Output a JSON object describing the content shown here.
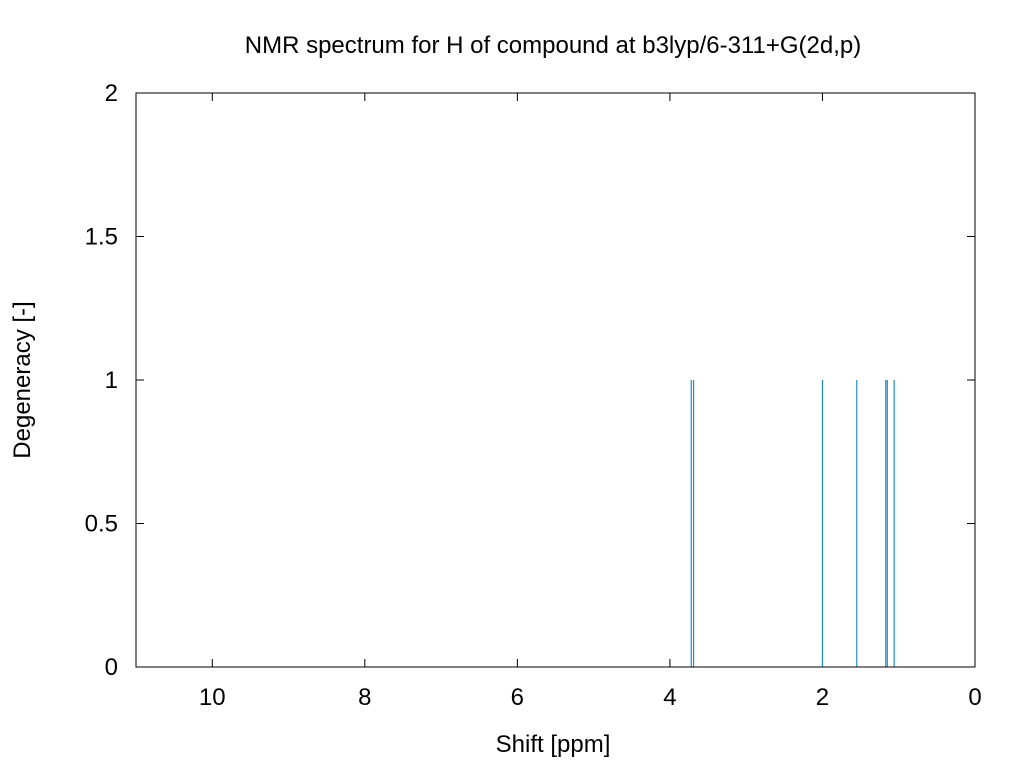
{
  "chart_data": {
    "type": "bar",
    "title": "NMR spectrum for H of compound at b3lyp/6-311+G(2d,p)",
    "xlabel": "Shift [ppm]",
    "ylabel": "Degeneracy [-]",
    "xlim": [
      11,
      0
    ],
    "ylim": [
      0,
      2
    ],
    "x_reversed": true,
    "grid": false,
    "xticks": [
      10,
      8,
      6,
      4,
      2,
      0
    ],
    "xtick_labels": [
      "10",
      "8",
      "6",
      "4",
      "2",
      "0"
    ],
    "yticks": [
      0,
      0.5,
      1,
      1.5,
      2
    ],
    "ytick_labels": [
      "0",
      "0.5",
      "1",
      "1.5",
      "2"
    ],
    "series": [
      {
        "color": "#1f8fc1",
        "peaks": [
          {
            "x": 3.72,
            "y": 1
          },
          {
            "x": 3.69,
            "y": 1
          },
          {
            "x": 2.0,
            "y": 1
          },
          {
            "x": 1.55,
            "y": 1
          },
          {
            "x": 1.17,
            "y": 1
          },
          {
            "x": 1.15,
            "y": 1
          },
          {
            "x": 1.06,
            "y": 1
          }
        ]
      }
    ]
  }
}
